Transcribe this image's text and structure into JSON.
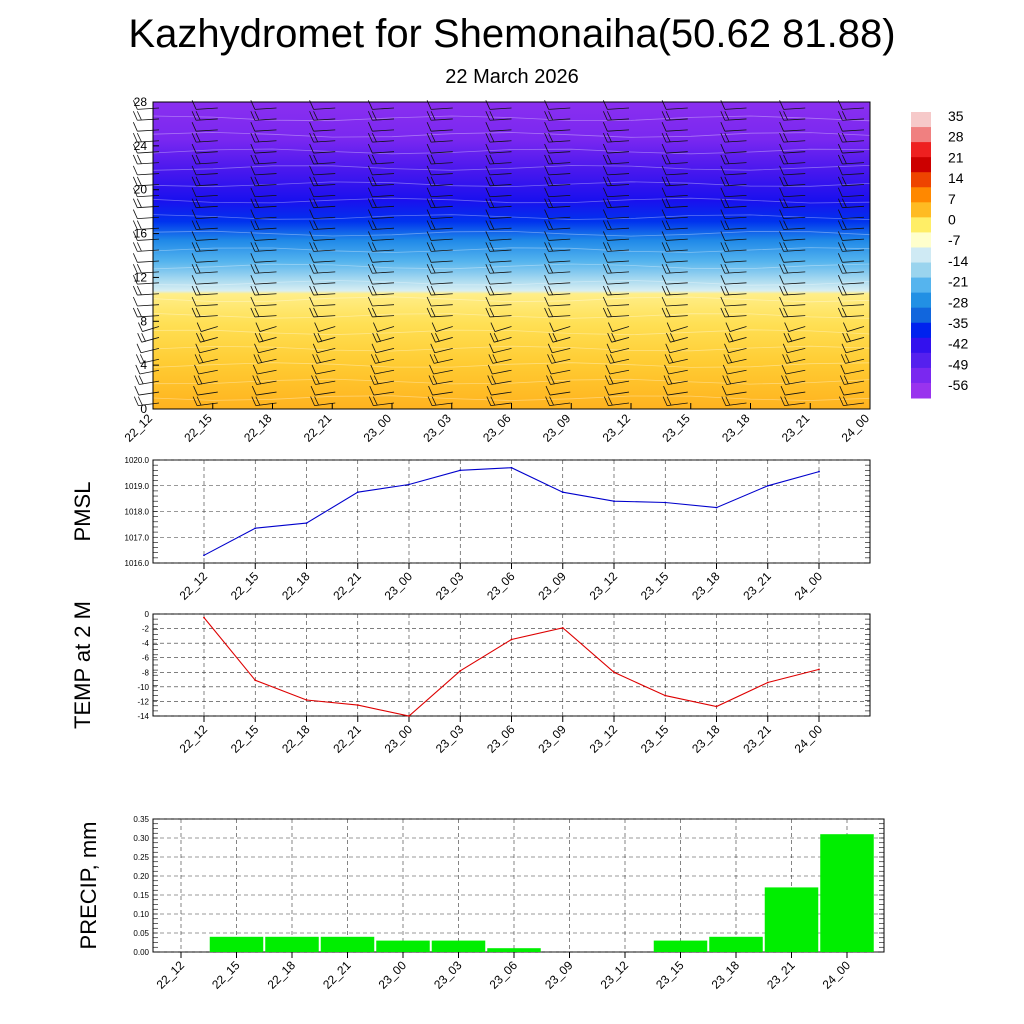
{
  "title": "Kazhydromet for Shemonaiha(50.62 81.88)",
  "subtitle": "22 March 2026",
  "time_labels": [
    "22_12",
    "22_15",
    "22_18",
    "22_21",
    "23_00",
    "23_03",
    "23_06",
    "23_09",
    "23_12",
    "23_15",
    "23_18",
    "23_21",
    "24_00"
  ],
  "colors": {
    "pmsl_line": "#0000cc",
    "temp_line": "#dd0000",
    "precip_bar": "#00ee00"
  },
  "chart_data": [
    {
      "type": "heatmap",
      "name": "upper-air-temperature",
      "y_ticks": [
        "0",
        "4",
        "8",
        "12",
        "16",
        "20",
        "24",
        "28"
      ],
      "ylim": [
        0,
        28
      ],
      "colorbar_labels": [
        "35",
        "28",
        "21",
        "14",
        "7",
        "0",
        "-7",
        "-14",
        "-21",
        "-28",
        "-35",
        "-42",
        "-49",
        "-56"
      ],
      "colorbar_colors": [
        "#f6c9c9",
        "#f08080",
        "#ee2020",
        "#cc0000",
        "#ee4400",
        "#ff8800",
        "#ffbb22",
        "#ffee66",
        "#ffffcc",
        "#cfeaf4",
        "#9ad4ee",
        "#55b4ee",
        "#2290e4",
        "#1166dd",
        "#0022ee",
        "#3311ee",
        "#5520ee",
        "#7a28f0",
        "#9933ee"
      ]
    },
    {
      "type": "line",
      "name": "PMSL",
      "ylabel": "PMSL",
      "ylim": [
        1016.0,
        1020.0
      ],
      "y_ticks": [
        "1016.0",
        "1017.0",
        "1018.0",
        "1019.0",
        "1020.0"
      ],
      "categories": [
        "22_12",
        "22_15",
        "22_18",
        "22_21",
        "23_00",
        "23_03",
        "23_06",
        "23_09",
        "23_12",
        "23_15",
        "23_18",
        "23_21",
        "24_00"
      ],
      "values": [
        1016.3,
        1017.35,
        1017.55,
        1018.75,
        1019.05,
        1019.6,
        1019.7,
        1018.75,
        1018.4,
        1018.35,
        1018.15,
        1019.0,
        1019.55
      ]
    },
    {
      "type": "line",
      "name": "TEMP",
      "ylabel": "TEMP at 2 M",
      "ylim": [
        -14,
        0
      ],
      "y_ticks": [
        "-14",
        "-12",
        "-10",
        "-8",
        "-6",
        "-4",
        "-2",
        "0"
      ],
      "categories": [
        "22_12",
        "22_15",
        "22_18",
        "22_21",
        "23_00",
        "23_03",
        "23_06",
        "23_09",
        "23_12",
        "23_15",
        "23_18",
        "23_21",
        "24_00"
      ],
      "values": [
        -0.5,
        -9.1,
        -11.8,
        -12.5,
        -14.0,
        -7.8,
        -3.5,
        -1.9,
        -8.0,
        -11.2,
        -12.7,
        -9.4,
        -7.6
      ]
    },
    {
      "type": "bar",
      "name": "PRECIP",
      "ylabel": "PRECIP, mm",
      "ylim": [
        0,
        0.35
      ],
      "y_ticks": [
        "0.00",
        "0.05",
        "0.10",
        "0.15",
        "0.20",
        "0.25",
        "0.30",
        "0.35"
      ],
      "categories": [
        "22_12",
        "22_15",
        "22_18",
        "22_21",
        "23_00",
        "23_03",
        "23_06",
        "23_09",
        "23_12",
        "23_15",
        "23_18",
        "23_21",
        "24_00"
      ],
      "values": [
        0,
        0.04,
        0.04,
        0.04,
        0.03,
        0.03,
        0.01,
        0,
        0,
        0.03,
        0.04,
        0.17,
        0.31
      ]
    }
  ]
}
